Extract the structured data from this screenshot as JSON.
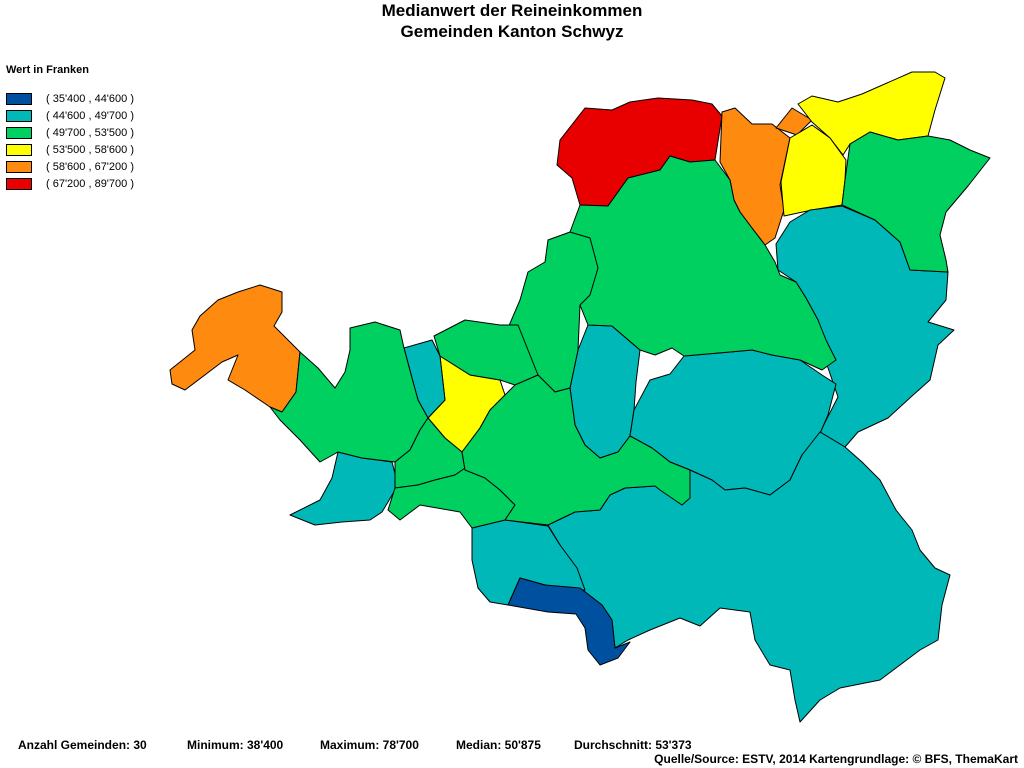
{
  "title": {
    "line1": "Medianwert der Reineinkommen",
    "line2": "Gemeinden Kanton Schwyz"
  },
  "legend": {
    "title": "Wert in Franken",
    "items": [
      {
        "label": "( 35'400 , 44'600 )",
        "color": "#0050a0"
      },
      {
        "label": "( 44'600 , 49'700 )",
        "color": "#00b8b8"
      },
      {
        "label": "( 49'700 , 53'500 )",
        "color": "#00d060"
      },
      {
        "label": "( 53'500 , 58'600 )",
        "color": "#ffff00"
      },
      {
        "label": "( 58'600 , 67'200 )",
        "color": "#ff8a10"
      },
      {
        "label": "( 67'200 , 89'700 )",
        "color": "#e80000"
      }
    ]
  },
  "stats": {
    "count": "Anzahl Gemeinden: 30",
    "minimum": "Minimum: 38'400",
    "maximum": "Maximum: 78'700",
    "median": "Median: 50'875",
    "mean": "Durchschnitt: 53'373"
  },
  "source": "Quelle/Source: ESTV, 2014 Kartengrundlage: © BFS, ThemaKart"
}
